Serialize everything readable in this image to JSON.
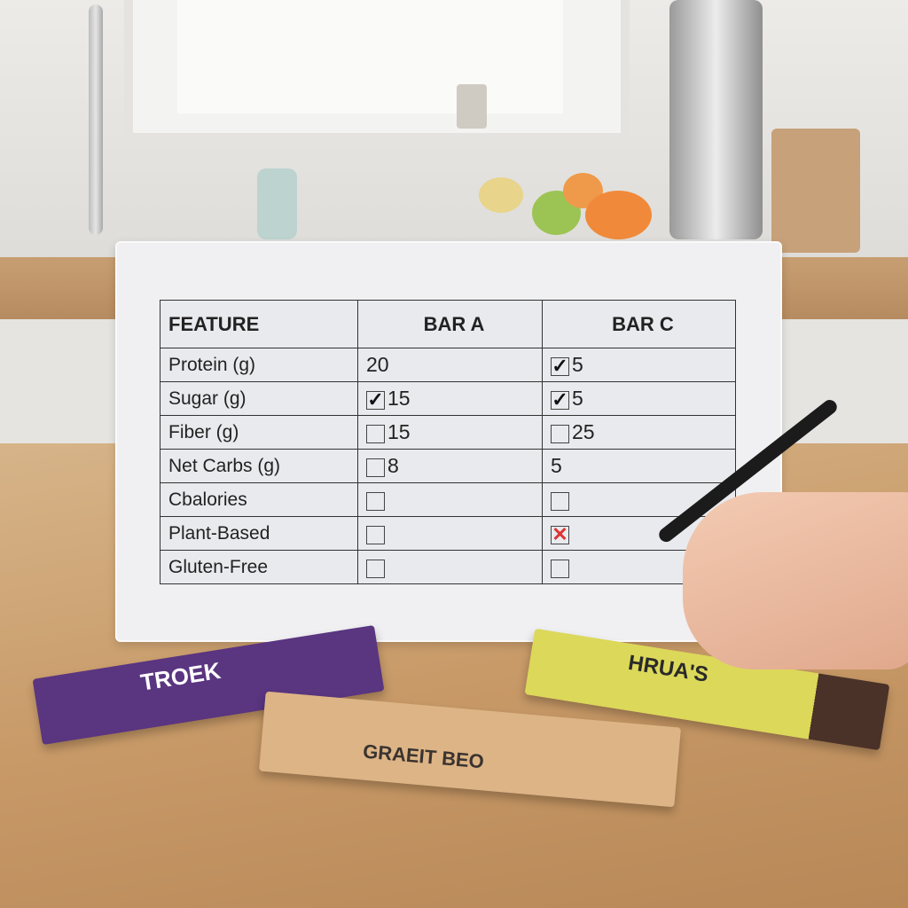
{
  "table": {
    "headers": [
      "FEATURE",
      "BAR A",
      "BAR C"
    ],
    "rows": [
      {
        "feature": "Protein (g)",
        "a": {
          "mark": null,
          "value": "20"
        },
        "c": {
          "mark": "check",
          "value": "5"
        }
      },
      {
        "feature": "Sugar (g)",
        "a": {
          "mark": "check",
          "value": "15"
        },
        "c": {
          "mark": "check",
          "value": "5"
        }
      },
      {
        "feature": "Fiber (g)",
        "a": {
          "mark": "box",
          "value": "15"
        },
        "c": {
          "mark": "box",
          "value": "25"
        }
      },
      {
        "feature": "Net Carbs (g)",
        "a": {
          "mark": "box",
          "value": "8"
        },
        "c": {
          "mark": null,
          "value": "5"
        }
      },
      {
        "feature": "Cbalories",
        "a": {
          "mark": "box",
          "value": ""
        },
        "c": {
          "mark": "box",
          "value": ""
        }
      },
      {
        "feature": "Plant-Based",
        "a": {
          "mark": "box",
          "value": ""
        },
        "c": {
          "mark": "x",
          "value": ""
        }
      },
      {
        "feature": "Gluten-Free",
        "a": {
          "mark": "box",
          "value": ""
        },
        "c": {
          "mark": "box",
          "value": ""
        }
      }
    ]
  },
  "wrappers": [
    {
      "brand": "TROEK",
      "color": "#5a3580"
    },
    {
      "brand": "GRAEIT BEO",
      "color": "#ddb485"
    },
    {
      "brand": "HRUA'S",
      "color": "#dcd85a"
    }
  ],
  "colors": {
    "check": "#111111",
    "x_mark": "#d33333",
    "board": "#f0f0f2"
  }
}
